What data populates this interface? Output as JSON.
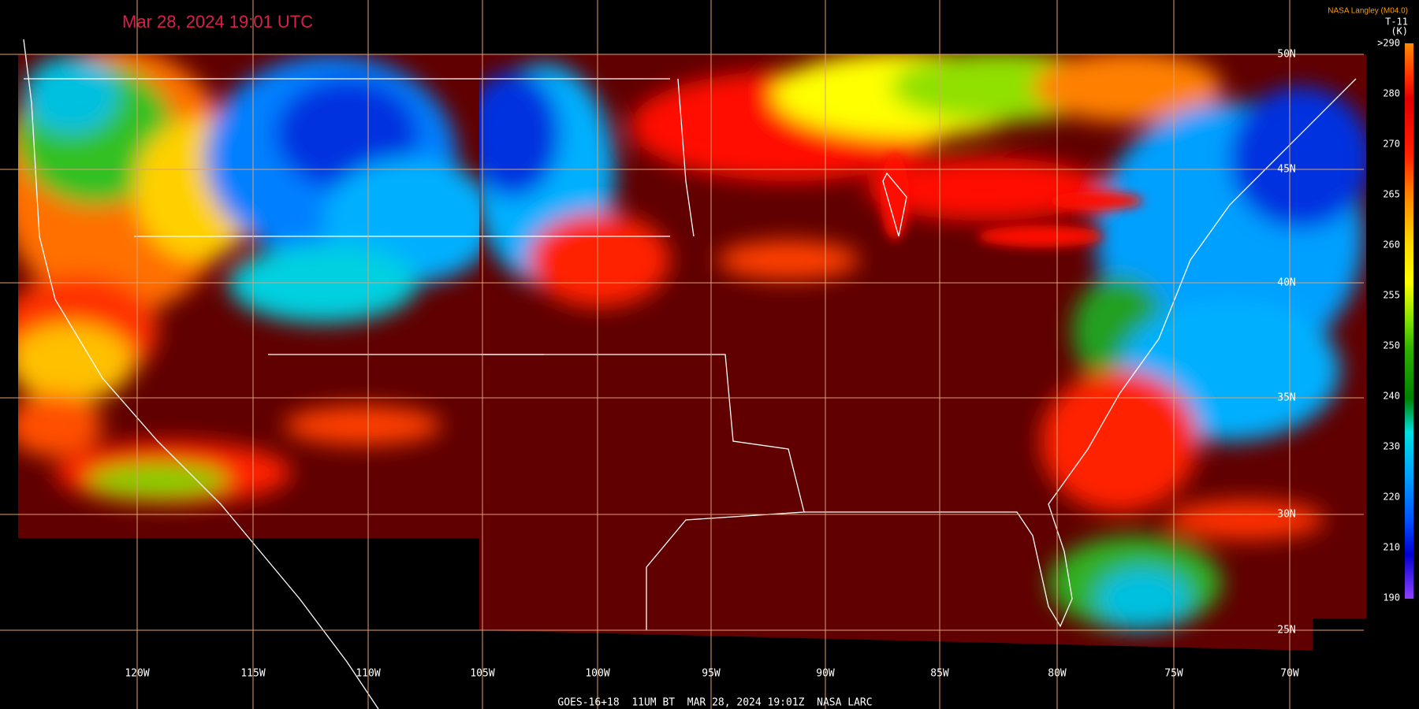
{
  "title": "Mar 28, 2024 19:01 UTC",
  "credit": "NASA Langley (M04.0)",
  "legend": {
    "title": "T-11",
    "unit": "(K)",
    "labels": [
      ">290",
      "280",
      "270",
      "265",
      "260",
      "255",
      "250",
      "240",
      "230",
      "220",
      "210",
      "190"
    ]
  },
  "longitude_labels": [
    "120W",
    "115W",
    "110W",
    "105W",
    "100W",
    "95W",
    "90W",
    "85W",
    "80W",
    "75W",
    "70W"
  ],
  "latitude_labels": [
    "50N",
    "45N",
    "40N",
    "35N",
    "30N",
    "25N"
  ],
  "footer": "GOES-16+18  11UM BT  MAR 28, 2024 19:01Z  NASA LARC"
}
